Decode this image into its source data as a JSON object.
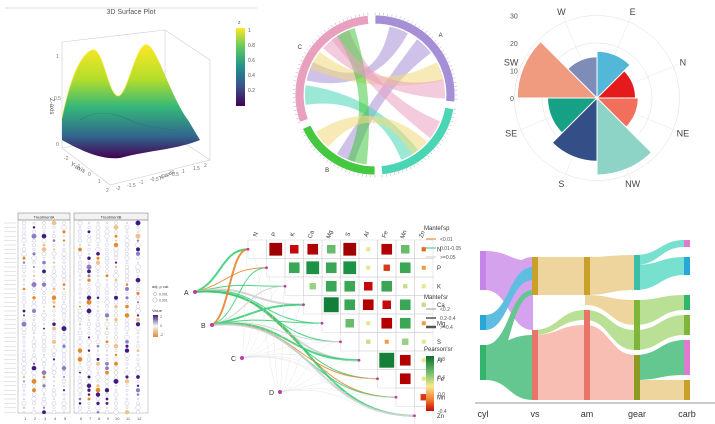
{
  "colors": {
    "viridis": [
      "#440154",
      "#3b528b",
      "#21918c",
      "#5ec962",
      "#fde725"
    ],
    "chord": [
      "#a58fd6",
      "#4ad6b5",
      "#44c840",
      "#e9a0bf",
      "#f2d87a",
      "#f7c4a0"
    ],
    "rose": [
      "#e41a1c",
      "#f26f5c",
      "#52b7d8",
      "#16a085",
      "#344e88",
      "#f09a80",
      "#7e8db7",
      "#8ed4c6"
    ],
    "dot_purple": "#3f197f",
    "dot_orange": "#e08a2a",
    "pearson": [
      "#c40a0a",
      "#f07a2a",
      "#f7e98e",
      "#a9d98a",
      "#1f9a49",
      "#0d6b2e"
    ],
    "mantel": [
      "#e67e22",
      "#2ecc71",
      "#cccccc"
    ],
    "sankey": [
      "#c784e8",
      "#29a8d8",
      "#31b56a",
      "#f6a79a",
      "#e9c77e",
      "#a3d673"
    ]
  },
  "chart_data": [
    {
      "type": "surface",
      "title": "3D Surface Plot",
      "xlabel": "X-axis",
      "ylabel": "Y-axis",
      "zlabel": "Z-axis",
      "colorbar": {
        "title": "z",
        "ticks": [
          "1",
          "0.8",
          "0.6",
          "0.4",
          "0.2"
        ]
      },
      "x_ticks": [
        "-2",
        "-1.5",
        "-1",
        "-0.5",
        "0",
        "0.5",
        "1",
        "1.5",
        "2"
      ],
      "y_ticks": [
        "-2",
        "-1",
        "0",
        "1",
        "2"
      ],
      "z_ticks": [
        "0",
        "0.5",
        "1"
      ]
    },
    {
      "type": "chord",
      "sectors": [
        {
          "label": "A",
          "color": "#a58fd6",
          "start": 0,
          "end": 95
        },
        {
          "label": "",
          "color": "#4ad6b5",
          "start": 100,
          "end": 175
        },
        {
          "label": "B",
          "color": "#44c840",
          "start": 180,
          "end": 245
        },
        {
          "label": "C",
          "color": "#e9a0bf",
          "start": 250,
          "end": 355
        }
      ],
      "links": [
        {
          "from": 20,
          "to": 290,
          "color": "#a58fd6"
        },
        {
          "from": 45,
          "to": 205,
          "color": "#a58fd6"
        },
        {
          "from": 70,
          "to": 300,
          "color": "#f2d87a"
        },
        {
          "from": 120,
          "to": 330,
          "color": "#e9a0bf"
        },
        {
          "from": 150,
          "to": 270,
          "color": "#4ad6b5"
        },
        {
          "from": 195,
          "to": 335,
          "color": "#44c840"
        },
        {
          "from": 230,
          "to": 140,
          "color": "#f2d87a"
        },
        {
          "from": 320,
          "to": 85,
          "color": "#e9a0bf"
        }
      ]
    },
    {
      "type": "rose",
      "directions": [
        "N",
        "NE",
        "E",
        "SE",
        "S",
        "SW",
        "W",
        "NW"
      ],
      "label_order": [
        "W",
        "E",
        "N",
        "NE",
        "NW",
        "S",
        "SE",
        "SW"
      ],
      "values": [
        14,
        15,
        17,
        18,
        23,
        29,
        15,
        28
      ],
      "r_ticks": [
        0,
        10,
        20,
        30
      ]
    },
    {
      "type": "dotmatrix",
      "facets": [
        "TreatmentA",
        "TreatmentB"
      ],
      "legend_title_size": "adj. p val.",
      "legend_size": [
        "0.001",
        "0.001"
      ],
      "legend_title_color": "Value",
      "legend_color": [
        "2",
        "0",
        "-2"
      ],
      "x_ticks": [
        "1",
        "2",
        "3",
        "4",
        "5",
        "6",
        "7",
        "8",
        "9",
        "10",
        "11",
        "12"
      ]
    },
    {
      "type": "heatmap",
      "variables": [
        "N",
        "P",
        "K",
        "Ca",
        "Mg",
        "S",
        "Al",
        "Fe",
        "Mn",
        "Zn"
      ],
      "row_labels": [
        "N",
        "P",
        "K",
        "Ca",
        "Mg",
        "S",
        "Al",
        "Fe",
        "Mn",
        "Zn"
      ],
      "cells": [
        [
          0,
          1,
          -0.6
        ],
        [
          0,
          2,
          -0.4
        ],
        [
          0,
          3,
          -0.5
        ],
        [
          0,
          4,
          0.4
        ],
        [
          0,
          5,
          -0.6
        ],
        [
          0,
          6,
          0.1
        ],
        [
          0,
          7,
          -0.5
        ],
        [
          0,
          8,
          0.4
        ],
        [
          0,
          9,
          -0.2
        ],
        [
          1,
          2,
          0.5
        ],
        [
          1,
          3,
          0.6
        ],
        [
          1,
          4,
          0.5
        ],
        [
          1,
          5,
          0.6
        ],
        [
          1,
          6,
          0.1
        ],
        [
          1,
          7,
          -0.3
        ],
        [
          1,
          8,
          0.5
        ],
        [
          1,
          9,
          -0.1
        ],
        [
          2,
          3,
          0.3
        ],
        [
          2,
          4,
          0.5
        ],
        [
          2,
          5,
          0.5
        ],
        [
          2,
          6,
          -0.4
        ],
        [
          2,
          7,
          0.5
        ],
        [
          2,
          8,
          0.2
        ],
        [
          2,
          9,
          0.1
        ],
        [
          3,
          4,
          0.7
        ],
        [
          3,
          5,
          0.5
        ],
        [
          3,
          6,
          -0.5
        ],
        [
          3,
          7,
          -0.4
        ],
        [
          3,
          8,
          0.5
        ],
        [
          3,
          9,
          0.2
        ],
        [
          4,
          5,
          0.4
        ],
        [
          4,
          6,
          0.1
        ],
        [
          4,
          7,
          -0.5
        ],
        [
          4,
          8,
          0.5
        ],
        [
          4,
          9,
          -0.1
        ],
        [
          5,
          6,
          0.2
        ],
        [
          5,
          7,
          -0.1
        ],
        [
          5,
          8,
          0.3
        ],
        [
          5,
          9,
          0.1
        ],
        [
          6,
          7,
          0.7
        ],
        [
          6,
          8,
          -0.5
        ],
        [
          6,
          9,
          0.1
        ],
        [
          7,
          8,
          -0.5
        ],
        [
          7,
          9,
          0.1
        ],
        [
          8,
          9,
          -0.3
        ]
      ],
      "nodes": [
        "A",
        "B",
        "C",
        "D"
      ],
      "legend_mantel_p": {
        "title": "Mantel'sp",
        "items": [
          "<0.01",
          "0.01-0.05",
          ">=0.05"
        ]
      },
      "legend_mantel_r": {
        "title": "Mantel'sr",
        "items": [
          "<0.2",
          "0.2-0.4",
          ">=0.4"
        ]
      },
      "legend_pearson": {
        "title": "Pearson'sr",
        "ticks": [
          "0.8",
          "0.4",
          "0.0",
          "-0.4"
        ],
        "range": [
          -0.4,
          0.8
        ]
      }
    },
    {
      "type": "sankey",
      "axes": [
        "cyl",
        "vs",
        "am",
        "gear",
        "carb"
      ]
    }
  ]
}
